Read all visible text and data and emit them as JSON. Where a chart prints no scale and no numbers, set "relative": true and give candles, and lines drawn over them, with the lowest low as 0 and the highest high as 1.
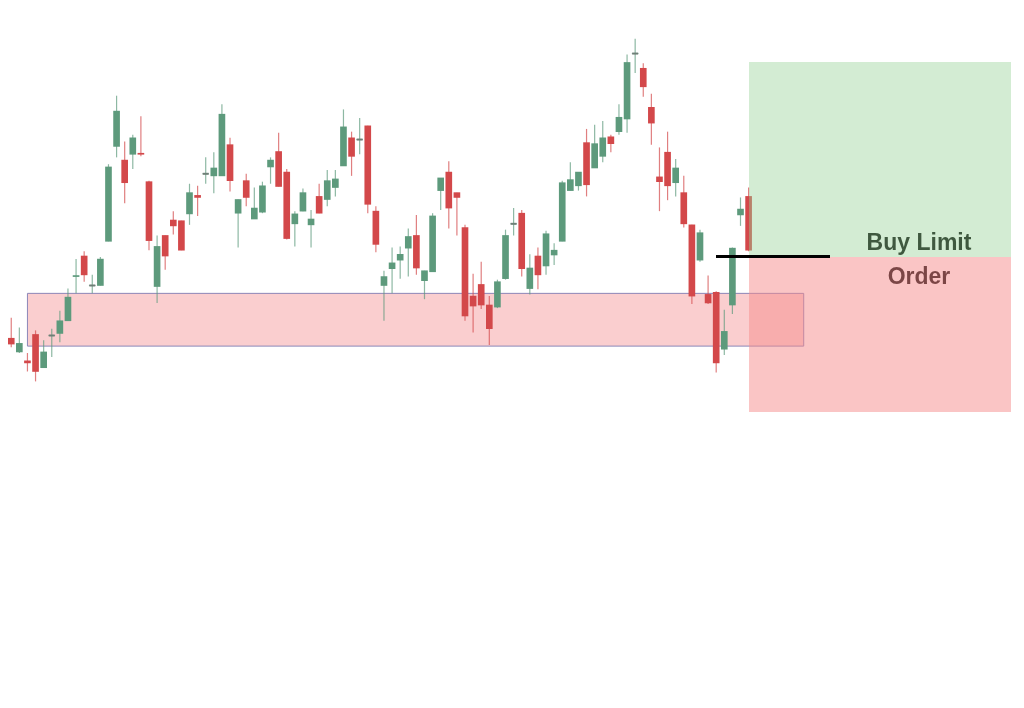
{
  "chart_data": {
    "type": "candlestick",
    "relative": true,
    "categories": [
      null,
      null,
      null,
      null,
      null,
      null,
      null,
      null,
      null,
      null,
      null,
      null,
      null,
      null,
      null,
      null,
      null,
      null,
      null,
      null,
      null,
      null,
      null,
      null,
      null,
      null,
      null,
      null,
      null,
      null,
      null,
      null,
      null,
      null,
      null,
      null,
      null,
      null,
      null,
      null,
      null,
      null,
      null,
      null,
      null,
      null,
      null,
      null,
      null,
      null,
      null,
      null,
      null,
      null,
      null,
      null,
      null,
      null,
      null,
      null,
      null,
      null,
      null,
      null,
      null,
      null,
      null,
      null,
      null,
      null,
      null,
      null,
      null,
      null,
      null,
      null,
      null,
      null,
      null,
      null,
      null,
      null,
      null,
      null,
      null,
      null,
      null,
      null,
      null,
      null,
      null,
      null
    ],
    "ohlc": [
      [
        0.126,
        0.186,
        0.1,
        0.109
      ],
      [
        0.086,
        0.157,
        0.083,
        0.111
      ],
      [
        0.06,
        0.083,
        0.029,
        0.054
      ],
      [
        0.137,
        0.149,
        0,
        0.029
      ],
      [
        0.04,
        0.12,
        0.04,
        0.086
      ],
      [
        0.134,
        0.154,
        0.071,
        0.134
      ],
      [
        0.14,
        0.206,
        0.114,
        0.177
      ],
      [
        0.177,
        0.271,
        0.177,
        0.246
      ],
      [
        0.306,
        0.357,
        0.257,
        0.309
      ],
      [
        0.366,
        0.38,
        0.291,
        0.311
      ],
      [
        0.28,
        0.311,
        0.257,
        0.28
      ],
      [
        0.28,
        0.363,
        0.28,
        0.357
      ],
      [
        0.409,
        0.634,
        0.409,
        0.626
      ],
      [
        0.686,
        0.834,
        0.654,
        0.789
      ],
      [
        0.646,
        0.7,
        0.52,
        0.58
      ],
      [
        0.663,
        0.72,
        0.62,
        0.711
      ],
      [
        0.666,
        0.774,
        0.657,
        0.663
      ],
      [
        0.583,
        0.586,
        0.383,
        0.411
      ],
      [
        0.277,
        0.426,
        0.229,
        0.394
      ],
      [
        0.426,
        0.426,
        0.326,
        0.366
      ],
      [
        0.471,
        0.497,
        0.429,
        0.454
      ],
      [
        0.469,
        0.469,
        0.383,
        0.383
      ],
      [
        0.489,
        0.577,
        0.457,
        0.551
      ],
      [
        0.543,
        0.571,
        0.483,
        0.537
      ],
      [
        0.606,
        0.654,
        0.577,
        0.606
      ],
      [
        0.6,
        0.669,
        0.549,
        0.623
      ],
      [
        0.6,
        0.809,
        0.6,
        0.78
      ],
      [
        0.691,
        0.711,
        0.554,
        0.586
      ],
      [
        0.491,
        0.531,
        0.391,
        0.531
      ],
      [
        0.586,
        0.606,
        0.511,
        0.537
      ],
      [
        0.474,
        0.566,
        0.474,
        0.506
      ],
      [
        0.494,
        0.583,
        0.491,
        0.571
      ],
      [
        0.626,
        0.654,
        0.577,
        0.646
      ],
      [
        0.671,
        0.726,
        0.569,
        0.569
      ],
      [
        0.611,
        0.62,
        0.414,
        0.417
      ],
      [
        0.46,
        0.497,
        0.394,
        0.489
      ],
      [
        0.497,
        0.563,
        0.497,
        0.551
      ],
      [
        0.457,
        0.5,
        0.391,
        0.474
      ],
      [
        0.54,
        0.577,
        0.491,
        0.491
      ],
      [
        0.531,
        0.617,
        0.511,
        0.586
      ],
      [
        0.566,
        0.617,
        0.54,
        0.591
      ],
      [
        0.629,
        0.794,
        0.629,
        0.743
      ],
      [
        0.711,
        0.729,
        0.6,
        0.657
      ],
      [
        0.706,
        0.769,
        0.663,
        0.706
      ],
      [
        0.746,
        0.746,
        0.491,
        0.517
      ],
      [
        0.497,
        0.511,
        0.377,
        0.4
      ],
      [
        0.28,
        0.323,
        0.177,
        0.306
      ],
      [
        0.329,
        0.391,
        0.257,
        0.346
      ],
      [
        0.354,
        0.394,
        0.3,
        0.371
      ],
      [
        0.389,
        0.446,
        0.306,
        0.423
      ],
      [
        0.426,
        0.486,
        0.311,
        0.331
      ],
      [
        0.294,
        0.323,
        0.24,
        0.323
      ],
      [
        0.32,
        0.491,
        0.32,
        0.483
      ],
      [
        0.557,
        0.594,
        0.5,
        0.594
      ],
      [
        0.611,
        0.643,
        0.446,
        0.506
      ],
      [
        0.551,
        0.551,
        0.426,
        0.537
      ],
      [
        0.449,
        0.457,
        0.177,
        0.191
      ],
      [
        0.249,
        0.314,
        0.143,
        0.22
      ],
      [
        0.283,
        0.349,
        0.211,
        0.223
      ],
      [
        0.223,
        0.249,
        0.106,
        0.154
      ],
      [
        0.217,
        0.297,
        0.214,
        0.291
      ],
      [
        0.3,
        0.443,
        0.297,
        0.426
      ],
      [
        0.46,
        0.506,
        0.426,
        0.46
      ],
      [
        0.491,
        0.5,
        0.306,
        0.329
      ],
      [
        0.271,
        0.371,
        0.254,
        0.331
      ],
      [
        0.366,
        0.391,
        0.269,
        0.311
      ],
      [
        0.337,
        0.44,
        0.311,
        0.431
      ],
      [
        0.369,
        0.403,
        0.34,
        0.383
      ],
      [
        0.409,
        0.586,
        0.409,
        0.58
      ],
      [
        0.557,
        0.64,
        0.557,
        0.589
      ],
      [
        0.571,
        0.611,
        0.557,
        0.611
      ],
      [
        0.697,
        0.737,
        0.54,
        0.574
      ],
      [
        0.623,
        0.749,
        0.623,
        0.694
      ],
      [
        0.657,
        0.76,
        0.64,
        0.711
      ],
      [
        0.714,
        0.72,
        0.669,
        0.694
      ],
      [
        0.729,
        0.809,
        0.72,
        0.771
      ],
      [
        0.766,
        0.954,
        0.726,
        0.931
      ],
      [
        0.957,
        1,
        0.9,
        0.957
      ],
      [
        0.914,
        0.929,
        0.831,
        0.86
      ],
      [
        0.8,
        0.84,
        0.691,
        0.754
      ],
      [
        0.597,
        0.683,
        0.497,
        0.583
      ],
      [
        0.669,
        0.729,
        0.529,
        0.571
      ],
      [
        0.58,
        0.649,
        0.54,
        0.623
      ],
      [
        0.551,
        0.6,
        0.449,
        0.46
      ],
      [
        0.457,
        0.457,
        0.226,
        0.249
      ],
      [
        0.354,
        0.443,
        0.349,
        0.434
      ],
      [
        0.254,
        0.309,
        0.226,
        0.229
      ],
      [
        0.26,
        0.263,
        0.026,
        0.054
      ],
      [
        0.094,
        0.209,
        0.077,
        0.146
      ],
      [
        0.223,
        0.391,
        0.197,
        0.389
      ],
      [
        0.486,
        0.537,
        0.454,
        0.503
      ],
      [
        0.54,
        0.566,
        0.38,
        0.383
      ]
    ],
    "annotations": [
      "Buy Limit Order"
    ],
    "bands": [
      {
        "axis": "y",
        "from": 0.103,
        "to": 0.257,
        "color": "#f7b3b5"
      }
    ]
  }
}
